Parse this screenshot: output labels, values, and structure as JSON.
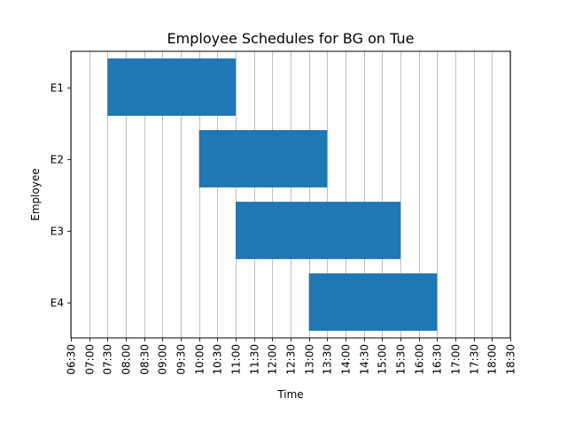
{
  "chart_data": {
    "type": "bar",
    "orientation": "horizontal",
    "title": "Employee Schedules for BG on Tue",
    "xlabel": "Time",
    "ylabel": "Employee",
    "x_ticks": [
      "06:30",
      "07:00",
      "07:30",
      "08:00",
      "08:30",
      "09:00",
      "09:30",
      "10:00",
      "10:30",
      "11:00",
      "11:30",
      "12:00",
      "12:30",
      "13:00",
      "13:30",
      "14:00",
      "14:30",
      "15:00",
      "15:30",
      "16:00",
      "16:30",
      "17:00",
      "17:30",
      "18:00",
      "18:30"
    ],
    "xlim": [
      "06:30",
      "18:30"
    ],
    "grid": "vertical",
    "bar_color": "#1f77b4",
    "categories": [
      "E1",
      "E2",
      "E3",
      "E4"
    ],
    "shifts": [
      {
        "employee": "E1",
        "start": "07:30",
        "end": "11:00"
      },
      {
        "employee": "E2",
        "start": "10:00",
        "end": "13:30"
      },
      {
        "employee": "E3",
        "start": "11:00",
        "end": "15:30"
      },
      {
        "employee": "E4",
        "start": "13:00",
        "end": "16:30"
      }
    ]
  }
}
